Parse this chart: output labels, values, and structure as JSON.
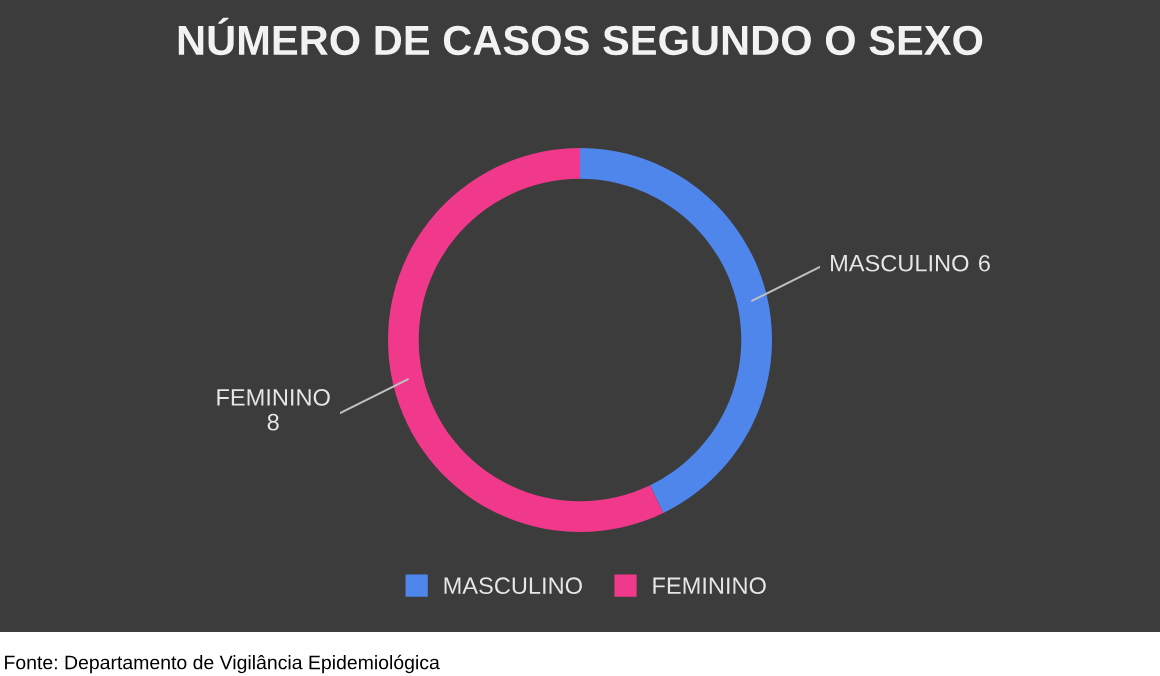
{
  "chart_data": {
    "type": "donut",
    "title": "NÚMERO DE CASOS SEGUNDO O SEXO",
    "categories": [
      "MASCULINO",
      "FEMININO"
    ],
    "values": [
      6,
      8
    ],
    "colors": [
      "#4f86ec",
      "#f0398a"
    ],
    "data_labels": true,
    "legend": "bottom",
    "annotations": [
      "Fonte: Departamento de Vigilância Epidemiológica"
    ]
  }
}
